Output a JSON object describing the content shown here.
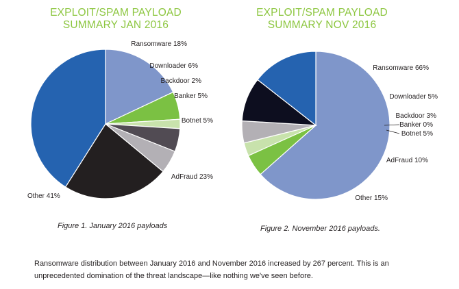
{
  "chart_data": [
    {
      "type": "pie",
      "title": "EXPLOIT/SPAM PAYLOAD SUMMARY JAN 2016",
      "title_lines": [
        "EXPLOIT/SPAM PAYLOAD",
        "SUMMARY JAN 2016"
      ],
      "caption": "Figure 1. January 2016 payloads",
      "slices": [
        {
          "label": "Ransomware 18%",
          "name": "Ransomware",
          "value": 18,
          "color": "#7f96ca"
        },
        {
          "label": "Downloader 6%",
          "name": "Downloader",
          "value": 6,
          "color": "#7bc143"
        },
        {
          "label": "Backdoor 2%",
          "name": "Backdoor",
          "value": 2,
          "color": "#c8e2ac"
        },
        {
          "label": "Banker 5%",
          "name": "Banker",
          "value": 5,
          "color": "#514b53"
        },
        {
          "label": "Botnet 5%",
          "name": "Botnet",
          "value": 5,
          "color": "#b3b0b5"
        },
        {
          "label": "AdFraud 23%",
          "name": "AdFraud",
          "value": 23,
          "color": "#231f20"
        },
        {
          "label": "Other 41%",
          "name": "Other",
          "value": 41,
          "color": "#2563b0"
        }
      ]
    },
    {
      "type": "pie",
      "title": "EXPLOIT/SPAM PAYLOAD SUMMARY NOV 2016",
      "title_lines": [
        "EXPLOIT/SPAM PAYLOAD",
        "SUMMARY NOV 2016"
      ],
      "caption": "Figure 2. November 2016 payloads.",
      "slices": [
        {
          "label": "Ransomware 66%",
          "name": "Ransomware",
          "value": 66,
          "color": "#7f96ca"
        },
        {
          "label": "Downloader 5%",
          "name": "Downloader",
          "value": 5,
          "color": "#7bc143"
        },
        {
          "label": "Backdoor 3%",
          "name": "Backdoor",
          "value": 3,
          "color": "#c8e2ac"
        },
        {
          "label": "Banker 0%",
          "name": "Banker",
          "value": 0,
          "color": "#514b53"
        },
        {
          "label": "Botnet 5%",
          "name": "Botnet",
          "value": 5,
          "color": "#b3b0b5"
        },
        {
          "label": "AdFraud 10%",
          "name": "AdFraud",
          "value": 10,
          "color": "#0d0e1f"
        },
        {
          "label": "Other 15%",
          "name": "Other",
          "value": 15,
          "color": "#2563b0"
        }
      ]
    }
  ],
  "body_text": "Ransomware distribution between January 2016 and November 2016 increased by 267 percent. This is an unprecedented domination of the threat landscape—like nothing we've seen before."
}
